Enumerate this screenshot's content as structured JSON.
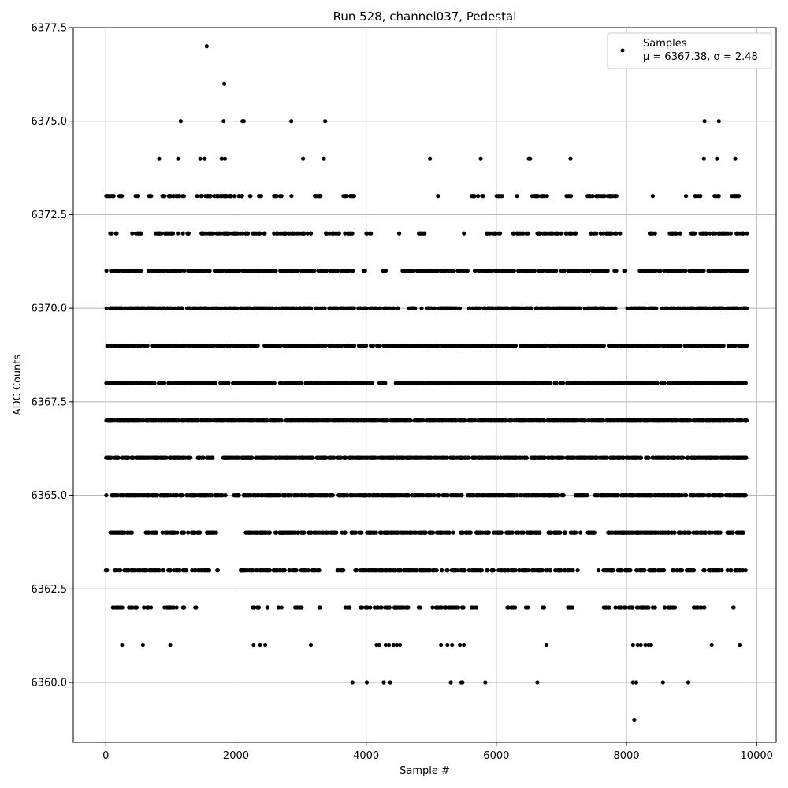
{
  "chart_data": {
    "type": "scatter",
    "title": "Run 528, channel037, Pedestal",
    "xlabel": "Sample #",
    "ylabel": "ADC Counts",
    "xlim": [
      -500,
      10300
    ],
    "ylim": [
      6358.4,
      6377.5
    ],
    "xticks": [
      0,
      2000,
      4000,
      6000,
      8000,
      10000
    ],
    "xtick_labels": [
      "0",
      "2000",
      "4000",
      "6000",
      "8000",
      "10000"
    ],
    "yticks": [
      6360.0,
      6362.5,
      6365.0,
      6367.5,
      6370.0,
      6372.5,
      6375.0,
      6377.5
    ],
    "ytick_labels": [
      "6360.0",
      "6362.5",
      "6365.0",
      "6367.5",
      "6370.0",
      "6372.5",
      "6375.0",
      "6377.5"
    ],
    "grid": true,
    "legend_position": "top-right",
    "marker_color": "#000000",
    "legend": {
      "series_name": "Samples",
      "stats_line": "μ = 6367.38, σ = 2.48"
    },
    "series": [
      {
        "name": "Samples",
        "points": [
          [
            1550,
            6377
          ],
          [
            1820,
            6376
          ],
          [
            1150,
            6375
          ],
          [
            1810,
            6375
          ],
          [
            2100,
            6375
          ],
          [
            2120,
            6375
          ],
          [
            2850,
            6375
          ],
          [
            3370,
            6375
          ],
          [
            9200,
            6375
          ],
          [
            9420,
            6375
          ],
          [
            820,
            6374
          ],
          [
            1110,
            6374
          ],
          [
            1450,
            6374
          ],
          [
            1520,
            6374
          ],
          [
            1780,
            6374
          ],
          [
            1830,
            6374
          ],
          [
            3030,
            6374
          ],
          [
            3350,
            6374
          ],
          [
            4980,
            6374
          ],
          [
            5760,
            6374
          ],
          [
            6500,
            6374
          ],
          [
            6520,
            6374
          ],
          [
            7140,
            6374
          ],
          [
            9190,
            6374
          ],
          [
            9390,
            6374
          ],
          [
            9670,
            6374
          ],
          [
            4010,
            6360
          ],
          [
            3790,
            6360
          ],
          [
            4270,
            6360
          ],
          [
            4370,
            6360
          ],
          [
            5300,
            6360
          ],
          [
            5460,
            6360
          ],
          [
            5480,
            6360
          ],
          [
            5830,
            6360
          ],
          [
            6630,
            6360
          ],
          [
            8100,
            6360
          ],
          [
            8150,
            6360
          ],
          [
            8560,
            6360
          ],
          [
            8950,
            6360
          ],
          [
            8120,
            6359
          ],
          [
            250,
            6361
          ],
          [
            570,
            6361
          ],
          [
            990,
            6361
          ],
          [
            2270,
            6361
          ],
          [
            2370,
            6361
          ],
          [
            2450,
            6361
          ],
          [
            3150,
            6361
          ],
          [
            4160,
            6361
          ],
          [
            4200,
            6361
          ],
          [
            4300,
            6361
          ],
          [
            4350,
            6361
          ],
          [
            4420,
            6361
          ],
          [
            4470,
            6361
          ],
          [
            4520,
            6361
          ],
          [
            5150,
            6361
          ],
          [
            5250,
            6361
          ],
          [
            5320,
            6361
          ],
          [
            5440,
            6361
          ],
          [
            5500,
            6361
          ],
          [
            6770,
            6361
          ],
          [
            8100,
            6361
          ],
          [
            8170,
            6361
          ],
          [
            8220,
            6361
          ],
          [
            8290,
            6361
          ],
          [
            8340,
            6361
          ],
          [
            8380,
            6361
          ],
          [
            9310,
            6361
          ],
          [
            9740,
            6361
          ]
        ],
        "bands": [
          {
            "y": 6373,
            "ranges": [
              [
                0,
                250
              ],
              [
                450,
                500
              ],
              [
                650,
                700
              ],
              [
                850,
                1200
              ],
              [
                1400,
                2250
              ],
              [
                2350,
                2400
              ],
              [
                2550,
                2700
              ],
              [
                2850,
                2870
              ],
              [
                3200,
                3350
              ],
              [
                3650,
                3850
              ],
              [
                5100,
                5120
              ],
              [
                5600,
                5800
              ],
              [
                6000,
                6100
              ],
              [
                6300,
                6320
              ],
              [
                6550,
                6800
              ],
              [
                7050,
                7150
              ],
              [
                7400,
                7850
              ],
              [
                8400,
                8420
              ],
              [
                8900,
                8920
              ],
              [
                9050,
                9150
              ],
              [
                9350,
                9450
              ],
              [
                9600,
                9750
              ]
            ],
            "density": 0.05
          },
          {
            "y": 6372,
            "ranges": [
              [
                50,
                100
              ],
              [
                150,
                200
              ],
              [
                400,
                550
              ],
              [
                750,
                1300
              ],
              [
                1450,
                2200
              ],
              [
                2250,
                2450
              ],
              [
                2550,
                3150
              ],
              [
                3350,
                3600
              ],
              [
                3650,
                3850
              ],
              [
                4000,
                4100
              ],
              [
                4500,
                4520
              ],
              [
                4800,
                4950
              ],
              [
                5500,
                5520
              ],
              [
                5850,
                6100
              ],
              [
                6250,
                6500
              ],
              [
                6600,
                7250
              ],
              [
                7450,
                7850
              ],
              [
                7900,
                7920
              ],
              [
                8350,
                8500
              ],
              [
                8650,
                8900
              ],
              [
                8950,
                9800
              ],
              [
                9850,
                9850
              ]
            ],
            "density": 0.045
          },
          {
            "y": 6371,
            "ranges": [
              [
                0,
                3800
              ],
              [
                3950,
                4000
              ],
              [
                4200,
                4300
              ],
              [
                4550,
                5600
              ],
              [
                5650,
                7850
              ],
              [
                7950,
                8000
              ],
              [
                8200,
                9850
              ]
            ],
            "density": 0.06
          },
          {
            "y": 6370,
            "ranges": [
              [
                0,
                4500
              ],
              [
                4600,
                4750
              ],
              [
                4850,
                5450
              ],
              [
                5550,
                7850
              ],
              [
                8000,
                9850
              ]
            ],
            "density": 0.07
          },
          {
            "y": 6369,
            "ranges": [
              [
                0,
                4000
              ],
              [
                4050,
                9850
              ]
            ],
            "density": 0.08
          },
          {
            "y": 6368,
            "ranges": [
              [
                0,
                4100
              ],
              [
                4200,
                4300
              ],
              [
                4450,
                9850
              ]
            ],
            "density": 0.08
          },
          {
            "y": 6367,
            "ranges": [
              [
                0,
                9850
              ]
            ],
            "density": 0.1
          },
          {
            "y": 6366,
            "ranges": [
              [
                0,
                1500
              ],
              [
                1550,
                1650
              ],
              [
                1800,
                9850
              ]
            ],
            "density": 0.08
          },
          {
            "y": 6365,
            "ranges": [
              [
                0,
                1650
              ],
              [
                1650,
                1850
              ],
              [
                1950,
                2050
              ],
              [
                2100,
                3500
              ],
              [
                3550,
                7050
              ],
              [
                7200,
                7400
              ],
              [
                7500,
                9850
              ]
            ],
            "density": 0.075
          },
          {
            "y": 6364,
            "ranges": [
              [
                0,
                450
              ],
              [
                600,
                800
              ],
              [
                850,
                1100
              ],
              [
                1150,
                1450
              ],
              [
                1550,
                1750
              ],
              [
                2150,
                3950
              ],
              [
                4000,
                5350
              ],
              [
                5450,
                6100
              ],
              [
                6150,
                6700
              ],
              [
                6800,
                7300
              ],
              [
                7400,
                7550
              ],
              [
                7700,
                9450
              ],
              [
                9500,
                9850
              ]
            ],
            "density": 0.06
          },
          {
            "y": 6363,
            "ranges": [
              [
                0,
                50
              ],
              [
                100,
                900
              ],
              [
                950,
                1250
              ],
              [
                1300,
                1600
              ],
              [
                1700,
                1750
              ],
              [
                2050,
                3300
              ],
              [
                3550,
                3650
              ],
              [
                3800,
                5800
              ],
              [
                5850,
                7250
              ],
              [
                7550,
                8600
              ],
              [
                8700,
                9050
              ],
              [
                9150,
                9500
              ],
              [
                9550,
                9850
              ]
            ],
            "density": 0.06
          },
          {
            "y": 6362,
            "ranges": [
              [
                50,
                300
              ],
              [
                350,
                500
              ],
              [
                550,
                700
              ],
              [
                900,
                1100
              ],
              [
                1150,
                1250
              ],
              [
                1350,
                1400
              ],
              [
                2200,
                2350
              ],
              [
                2450,
                2500
              ],
              [
                2650,
                2700
              ],
              [
                2900,
                3050
              ],
              [
                3250,
                3300
              ],
              [
                3650,
                3750
              ],
              [
                3900,
                4650
              ],
              [
                4800,
                4850
              ],
              [
                5000,
                5500
              ],
              [
                5600,
                5700
              ],
              [
                6150,
                6300
              ],
              [
                6450,
                6500
              ],
              [
                6700,
                6750
              ],
              [
                7100,
                7200
              ],
              [
                7650,
                8450
              ],
              [
                8550,
                8750
              ],
              [
                9000,
                9200
              ],
              [
                9600,
                9650
              ]
            ],
            "density": 0.045
          }
        ]
      }
    ]
  }
}
